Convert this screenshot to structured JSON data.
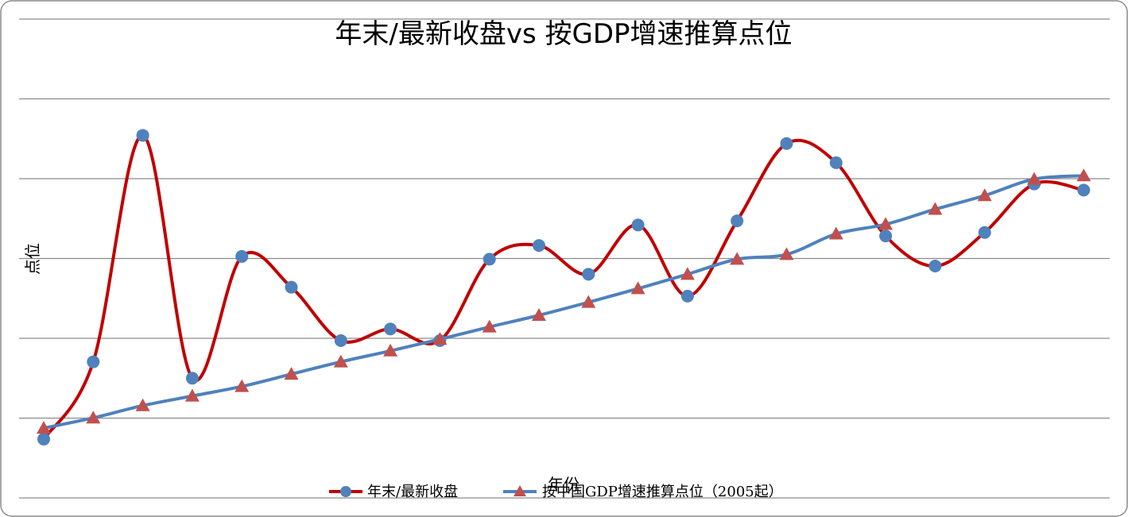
{
  "chart_data": {
    "type": "line",
    "title": "年末/最新收盘vs 按GDP增速推算点位",
    "xlabel": "年份",
    "ylabel": "点位",
    "categories": [
      "",
      "",
      "",
      "",
      "",
      "",
      "",
      "",
      "",
      "",
      "",
      "",
      "",
      "",
      "",
      "",
      "",
      "",
      "",
      "",
      "",
      "",
      ""
    ],
    "series": [
      {
        "name": "年末/最新收盘",
        "color": "#c00000",
        "marker_color": "#4f81bd",
        "marker": "circle",
        "values": [
          -0.09,
          1.04,
          4.35,
          0.8,
          2.58,
          2.13,
          1.35,
          1.52,
          1.35,
          2.54,
          2.74,
          2.32,
          3.04,
          2.0,
          3.1,
          4.23,
          3.95,
          2.88,
          2.44,
          2.93,
          3.64,
          3.55,
          null
        ]
      },
      {
        "name": "按中国GDP增速推算点位（2005起）",
        "color": "#4f81bd",
        "marker_color": "#c0504d",
        "marker": "triangle",
        "values": [
          0.07,
          0.22,
          0.4,
          0.54,
          0.68,
          0.86,
          1.04,
          1.2,
          1.37,
          1.55,
          1.72,
          1.91,
          2.11,
          2.32,
          2.54,
          2.61,
          2.91,
          3.05,
          3.27,
          3.47,
          3.71,
          3.76,
          null
        ]
      }
    ],
    "ylim": [
      -0.95,
      6.05
    ],
    "grid": true,
    "legend_position": "bottom"
  }
}
